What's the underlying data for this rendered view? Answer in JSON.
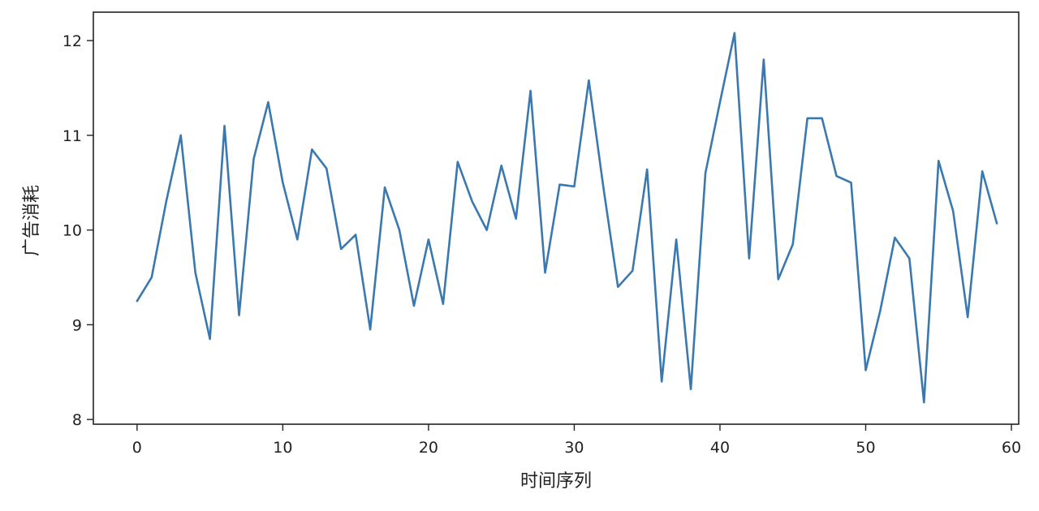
{
  "chart_data": {
    "type": "line",
    "title": "",
    "xlabel": "时间序列",
    "ylabel": "广告消耗",
    "xlim": [
      -3,
      60.5
    ],
    "ylim": [
      7.95,
      12.3
    ],
    "x_ticks": [
      0,
      10,
      20,
      30,
      40,
      50,
      60
    ],
    "y_ticks": [
      8,
      9,
      10,
      11,
      12
    ],
    "grid": false,
    "line_color": "#3a78b0",
    "series": [
      {
        "x": [
          0,
          1,
          2,
          3,
          4,
          5,
          6,
          7,
          8,
          9,
          10,
          11,
          12,
          13,
          14,
          15,
          16,
          17,
          18,
          19,
          20,
          21,
          22,
          23,
          24,
          25,
          26,
          27,
          28,
          29,
          30,
          31,
          32,
          33,
          34,
          35,
          36,
          37,
          38,
          39,
          40,
          41,
          42,
          43,
          44,
          45,
          46,
          47,
          48,
          49,
          50,
          51,
          52,
          53,
          54,
          55,
          56,
          57,
          58,
          59
        ],
        "values": [
          9.25,
          9.5,
          10.3,
          11.0,
          9.55,
          8.85,
          11.1,
          9.1,
          10.75,
          11.35,
          10.5,
          9.9,
          10.85,
          10.65,
          9.8,
          9.95,
          8.95,
          10.45,
          10.0,
          9.2,
          9.9,
          9.22,
          10.72,
          10.3,
          10.0,
          10.68,
          10.12,
          11.47,
          9.55,
          10.48,
          10.46,
          11.58,
          10.45,
          9.4,
          9.57,
          10.64,
          8.4,
          9.9,
          8.32,
          10.6,
          11.35,
          12.08,
          9.7,
          11.8,
          9.48,
          9.85,
          11.18,
          11.18,
          10.57,
          10.5,
          8.52,
          9.15,
          9.92,
          9.7,
          8.18,
          10.73,
          10.2,
          9.08,
          10.62,
          10.07
        ]
      }
    ]
  }
}
